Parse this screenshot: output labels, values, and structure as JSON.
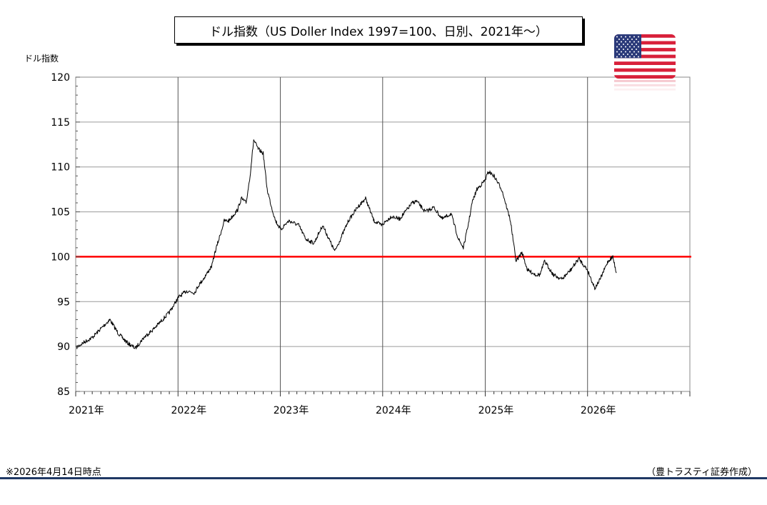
{
  "chart_data": {
    "type": "line",
    "title": "ドル指数（US Doller Index 1997=100、日別、2021年～）",
    "ylabel": "ドル指数",
    "xlabel": "",
    "ylim": [
      85,
      120
    ],
    "yticks": [
      120,
      115,
      110,
      105,
      100,
      95,
      90,
      85
    ],
    "xlim": [
      "2021-01-01",
      "2027-01-01"
    ],
    "xticks": [
      "2021年",
      "2022年",
      "2023年",
      "2024年",
      "2025年",
      "2026年"
    ],
    "grid": true,
    "reference_line": {
      "value": 100,
      "color": "#ff0000"
    },
    "series": [
      {
        "color": "#000000",
        "x": [
          "2021-01-04",
          "2021-02-01",
          "2021-03-01",
          "2021-04-01",
          "2021-05-03",
          "2021-06-01",
          "2021-07-01",
          "2021-08-02",
          "2021-09-01",
          "2021-10-01",
          "2021-11-01",
          "2021-12-01",
          "2022-01-03",
          "2022-02-01",
          "2022-03-01",
          "2022-03-15",
          "2022-04-01",
          "2022-05-02",
          "2022-05-13",
          "2022-06-01",
          "2022-06-15",
          "2022-07-01",
          "2022-07-14",
          "2022-08-01",
          "2022-08-15",
          "2022-09-01",
          "2022-09-15",
          "2022-09-28",
          "2022-10-14",
          "2022-11-01",
          "2022-11-15",
          "2022-12-01",
          "2022-12-15",
          "2023-01-03",
          "2023-01-15",
          "2023-02-01",
          "2023-03-08",
          "2023-04-01",
          "2023-05-01",
          "2023-06-01",
          "2023-07-14",
          "2023-08-01",
          "2023-09-01",
          "2023-10-03",
          "2023-11-01",
          "2023-12-01",
          "2023-12-28",
          "2024-02-01",
          "2024-03-01",
          "2024-04-16",
          "2024-05-01",
          "2024-06-01",
          "2024-07-01",
          "2024-08-01",
          "2024-09-01",
          "2024-09-27",
          "2024-10-15",
          "2024-11-01",
          "2024-11-15",
          "2024-12-02",
          "2024-12-31",
          "2025-01-13",
          "2025-02-01",
          "2025-03-01",
          "2025-04-01",
          "2025-04-21",
          "2025-05-12",
          "2025-06-01",
          "2025-07-01",
          "2025-07-15",
          "2025-08-01",
          "2025-09-01",
          "2025-10-01",
          "2025-11-01",
          "2025-12-01",
          "2026-01-01",
          "2026-01-27",
          "2026-02-15",
          "2026-03-01",
          "2026-03-15",
          "2026-04-01",
          "2026-04-14"
        ],
        "values": [
          89.9,
          90.5,
          91.0,
          92.0,
          93.0,
          91.5,
          90.5,
          89.8,
          91.0,
          91.8,
          92.8,
          93.8,
          95.5,
          96.2,
          96.0,
          96.8,
          97.5,
          99.0,
          100.5,
          102.5,
          104.0,
          104.0,
          104.5,
          105.2,
          106.5,
          106.0,
          109.0,
          113.0,
          112.0,
          111.5,
          107.5,
          105.5,
          104.0,
          103.0,
          103.5,
          104.0,
          103.5,
          102.0,
          101.5,
          103.5,
          100.6,
          101.8,
          104.0,
          105.5,
          106.5,
          104.0,
          103.5,
          104.5,
          104.2,
          106.0,
          106.2,
          105.0,
          105.5,
          104.2,
          104.8,
          102.0,
          101.0,
          103.5,
          106.0,
          107.5,
          108.5,
          109.5,
          109.0,
          107.5,
          104.0,
          99.5,
          100.5,
          98.5,
          98.0,
          98.0,
          99.5,
          98.0,
          97.5,
          98.5,
          99.8,
          98.5,
          96.5,
          97.5,
          98.5,
          99.5,
          100.0,
          98.2
        ]
      }
    ]
  },
  "footnote": "※2026年4月14日時点",
  "credit": "（豊トラスティ証券作成）",
  "flag_icon": "us-flag-icon"
}
